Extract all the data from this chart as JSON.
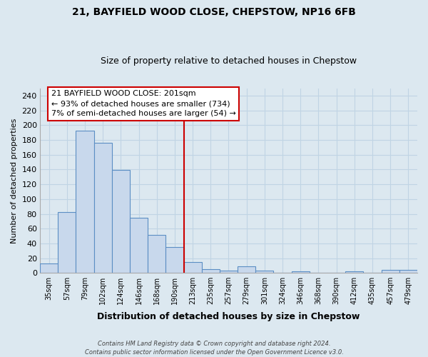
{
  "title": "21, BAYFIELD WOOD CLOSE, CHEPSTOW, NP16 6FB",
  "subtitle": "Size of property relative to detached houses in Chepstow",
  "xlabel": "Distribution of detached houses by size in Chepstow",
  "ylabel": "Number of detached properties",
  "bar_color": "#c8d8ec",
  "bar_edge_color": "#5b8ec4",
  "categories": [
    "35sqm",
    "57sqm",
    "79sqm",
    "102sqm",
    "124sqm",
    "146sqm",
    "168sqm",
    "190sqm",
    "213sqm",
    "235sqm",
    "257sqm",
    "279sqm",
    "301sqm",
    "324sqm",
    "346sqm",
    "368sqm",
    "390sqm",
    "412sqm",
    "435sqm",
    "457sqm",
    "479sqm"
  ],
  "values": [
    13,
    82,
    193,
    176,
    139,
    75,
    51,
    35,
    15,
    5,
    3,
    9,
    3,
    0,
    2,
    0,
    0,
    2,
    0,
    4,
    4
  ],
  "ylim": [
    0,
    250
  ],
  "yticks": [
    0,
    20,
    40,
    60,
    80,
    100,
    120,
    140,
    160,
    180,
    200,
    220,
    240
  ],
  "vline_color": "#cc0000",
  "annotation_title": "21 BAYFIELD WOOD CLOSE: 201sqm",
  "annotation_line1": "← 93% of detached houses are smaller (734)",
  "annotation_line2": "7% of semi-detached houses are larger (54) →",
  "annotation_box_color": "#ffffff",
  "annotation_box_edge": "#cc0000",
  "footer1": "Contains HM Land Registry data © Crown copyright and database right 2024.",
  "footer2": "Contains public sector information licensed under the Open Government Licence v3.0.",
  "background_color": "#dce8f0",
  "plot_bg_color": "#dce8f0",
  "grid_color": "#c0d4e4"
}
